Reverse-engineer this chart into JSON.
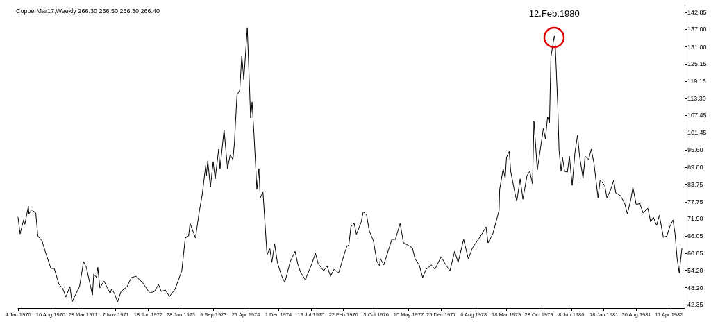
{
  "chart_data": {
    "type": "line",
    "title": "CopperMar17,Weekly 266.30 266.50 266.30 266.40",
    "grid": false,
    "xlim": [
      "1970-01-04",
      "1982-07-28"
    ],
    "xticks": [
      {
        "value": "1970-01-04",
        "label": "4 Jan 1970"
      },
      {
        "value": "1970-08-16",
        "label": "16 Aug 1970"
      },
      {
        "value": "1971-03-28",
        "label": "28 Mar 1971"
      },
      {
        "value": "1971-11-07",
        "label": "7 Nov 1971"
      },
      {
        "value": "1972-06-18",
        "label": "18 Jun 1972"
      },
      {
        "value": "1973-01-28",
        "label": "28 Jan 1973"
      },
      {
        "value": "1973-09-09",
        "label": "9 Sep 1973"
      },
      {
        "value": "1974-04-21",
        "label": "21 Apr 1974"
      },
      {
        "value": "1974-12-01",
        "label": "1 Dec 1974"
      },
      {
        "value": "1975-07-13",
        "label": "13 Jul 1975"
      },
      {
        "value": "1976-02-22",
        "label": "22 Feb 1976"
      },
      {
        "value": "1976-10-03",
        "label": "3 Oct 1976"
      },
      {
        "value": "1977-05-15",
        "label": "15 May 1977"
      },
      {
        "value": "1977-12-25",
        "label": "25 Dec 1977"
      },
      {
        "value": "1978-08-06",
        "label": "6 Aug 1978"
      },
      {
        "value": "1979-03-18",
        "label": "18 Mar 1979"
      },
      {
        "value": "1979-10-28",
        "label": "28 Oct 1979"
      },
      {
        "value": "1980-06-08",
        "label": "8 Jun 1980"
      },
      {
        "value": "1981-01-18",
        "label": "18 Jan 1981"
      },
      {
        "value": "1981-08-30",
        "label": "30 Aug 1981"
      },
      {
        "value": "1982-04-11",
        "label": "11 Apr 1982"
      }
    ],
    "ylim": [
      41.2,
      145.2
    ],
    "yticks": [
      142.85,
      {
        "value": 137,
        "label": "137.00"
      },
      {
        "value": 131,
        "label": "131.00"
      },
      125.15,
      119.15,
      {
        "value": 113.3,
        "label": "113.30"
      },
      107.45,
      101.45,
      {
        "value": 95.6,
        "label": "95.60"
      },
      {
        "value": 89.6,
        "label": "89.60"
      },
      83.75,
      77.75,
      {
        "value": 71.9,
        "label": "71.90"
      },
      66.05,
      60.05,
      {
        "value": 54.2,
        "label": "54.20"
      },
      {
        "value": 48.2,
        "label": "48.20"
      },
      42.35
    ],
    "annotations": [
      {
        "text": "12.Feb.1980",
        "x": "1980-02-12",
        "y": 134.7
      }
    ],
    "series": [
      {
        "color": "#000000",
        "x": [
          "1970-01-04",
          "1970-01-18",
          "1970-02-11",
          "1970-02-20",
          "1970-03-16",
          "1970-03-20",
          "1970-04-08",
          "1970-05-06",
          "1970-05-20",
          "1970-06-18",
          "1970-07-11",
          "1970-08-18",
          "1970-09-10",
          "1970-10-13",
          "1970-11-06",
          "1970-11-29",
          "1970-12-27",
          "1971-01-10",
          "1971-01-29",
          "1971-03-03",
          "1971-03-31",
          "1971-04-19",
          "1971-05-31",
          "1971-06-09",
          "1971-06-28",
          "1971-07-07",
          "1971-07-21",
          "1971-08-19",
          "1971-09-06",
          "1971-09-30",
          "1971-10-09",
          "1971-10-28",
          "1971-11-20",
          "1971-12-14",
          "1972-01-25",
          "1972-02-23",
          "1972-03-27",
          "1972-05-12",
          "1972-06-28",
          "1972-07-31",
          "1972-08-28",
          "1972-09-16",
          "1972-10-14",
          "1972-11-11",
          "1972-12-19",
          "1973-02-04",
          "1973-02-28",
          "1973-03-23",
          "1973-04-02",
          "1973-05-09",
          "1973-06-06",
          "1973-06-25",
          "1973-07-19",
          "1973-07-23",
          "1973-08-02",
          "1973-08-20",
          "1973-09-08",
          "1973-09-22",
          "1973-10-16",
          "1973-10-25",
          "1973-11-22",
          "1973-12-16",
          "1974-01-03",
          "1974-01-22",
          "1974-02-01",
          "1974-02-19",
          "1974-03-10",
          "1974-03-24",
          "1974-04-07",
          "1974-05-01",
          "1974-05-24",
          "1974-06-03",
          "1974-06-17",
          "1974-07-06",
          "1974-07-20",
          "1974-07-29",
          "1974-08-17",
          "1974-09-14",
          "1974-10-03",
          "1974-10-17",
          "1974-11-05",
          "1974-11-24",
          "1974-12-22",
          "1975-01-14",
          "1975-02-21",
          "1975-03-26",
          "1975-04-13",
          "1975-05-02",
          "1975-06-04",
          "1975-07-16",
          "1975-08-13",
          "1975-09-01",
          "1975-10-09",
          "1975-11-01",
          "1975-11-25",
          "1975-12-18",
          "1976-01-20",
          "1976-02-26",
          "1976-03-16",
          "1976-03-30",
          "1976-04-13",
          "1976-05-06",
          "1976-05-21",
          "1976-06-23",
          "1976-07-07",
          "1976-07-30",
          "1976-08-18",
          "1976-09-15",
          "1976-10-09",
          "1976-10-28",
          "1976-11-01",
          "1976-11-25",
          "1976-12-28",
          "1977-01-20",
          "1977-02-13",
          "1977-03-18",
          "1977-04-10",
          "1977-05-08",
          "1977-06-10",
          "1977-06-29",
          "1977-07-27",
          "1977-08-20",
          "1977-09-12",
          "1977-10-20",
          "1977-11-12",
          "1977-12-25",
          "1978-01-22",
          "1978-02-24",
          "1978-03-28",
          "1978-04-21",
          "1978-05-29",
          "1978-06-30",
          "1978-07-29",
          "1978-08-31",
          "1978-10-02",
          "1978-10-30",
          "1978-11-13",
          "1978-12-16",
          "1979-01-28",
          "1979-02-01",
          "1979-02-25",
          "1979-03-11",
          "1979-03-20",
          "1979-04-08",
          "1979-04-18",
          "1979-05-16",
          "1979-05-30",
          "1979-06-22",
          "1979-07-11",
          "1979-08-08",
          "1979-08-27",
          "1979-09-15",
          "1979-09-25",
          "1979-10-18",
          "1979-11-29",
          "1979-12-13",
          "1979-12-28",
          "1980-01-10",
          "1980-01-20",
          "1980-02-12",
          "1980-02-17",
          "1980-03-07",
          "1980-03-16",
          "1980-03-30",
          "1980-04-08",
          "1980-04-23",
          "1980-05-12",
          "1980-05-26",
          "1980-06-14",
          "1980-07-03",
          "1980-07-21",
          "1980-08-04",
          "1980-08-28",
          "1980-09-11",
          "1980-10-05",
          "1980-10-23",
          "1980-11-11",
          "1980-12-09",
          "1980-12-23",
          "1981-01-24",
          "1981-02-08",
          "1981-03-03",
          "1981-03-27",
          "1981-04-10",
          "1981-05-13",
          "1981-06-10",
          "1981-06-29",
          "1981-07-23",
          "1981-08-06",
          "1981-08-29",
          "1981-09-22",
          "1981-10-15",
          "1981-11-17",
          "1981-12-06",
          "1981-12-25",
          "1982-01-16",
          "1982-02-04",
          "1982-03-04",
          "1982-03-28",
          "1982-04-16",
          "1982-05-09",
          "1982-05-23",
          "1982-06-06",
          "1982-06-21",
          "1982-07-09"
        ],
        "values": [
          72.4,
          66.7,
          71.5,
          70.0,
          76.2,
          73.6,
          75.0,
          73.9,
          66.0,
          64.3,
          60.5,
          54.8,
          54.8,
          49.3,
          48.1,
          45.0,
          48.6,
          43.3,
          45.2,
          48.6,
          57.2,
          55.2,
          45.7,
          52.9,
          51.7,
          55.2,
          48.1,
          50.5,
          48.6,
          46.2,
          47.6,
          46.4,
          43.3,
          46.9,
          48.6,
          51.7,
          52.1,
          49.8,
          46.4,
          46.9,
          49.3,
          46.9,
          47.4,
          45.2,
          47.6,
          54.0,
          65.3,
          66.0,
          70.3,
          65.3,
          74.8,
          80.3,
          90.3,
          86.7,
          91.8,
          82.7,
          91.5,
          85.6,
          95.8,
          89.1,
          102.5,
          89.1,
          93.9,
          92.2,
          97.7,
          114.4,
          116.1,
          128.0,
          119.7,
          137.6,
          106.6,
          112.0,
          100.1,
          82.0,
          89.1,
          79.1,
          81.0,
          59.5,
          61.7,
          56.9,
          63.2,
          56.9,
          52.4,
          50.0,
          57.2,
          60.7,
          56.4,
          53.6,
          50.9,
          56.0,
          60.0,
          56.4,
          54.0,
          55.7,
          52.1,
          54.5,
          53.3,
          59.5,
          62.4,
          62.9,
          69.1,
          70.3,
          66.5,
          70.8,
          74.3,
          73.1,
          67.7,
          64.3,
          57.2,
          55.7,
          58.3,
          56.0,
          61.2,
          64.8,
          64.8,
          70.3,
          63.6,
          62.9,
          61.9,
          58.1,
          56.0,
          51.7,
          54.5,
          56.0,
          54.5,
          58.8,
          56.4,
          54.0,
          60.7,
          56.9,
          64.8,
          58.1,
          61.9,
          64.3,
          66.7,
          69.1,
          63.6,
          66.7,
          74.8,
          82.0,
          89.1,
          85.8,
          93.0,
          95.1,
          88.2,
          81.0,
          77.9,
          85.6,
          78.6,
          86.7,
          88.2,
          83.9,
          105.4,
          88.7,
          103.0,
          99.4,
          107.0,
          104.9,
          127.6,
          134.7,
          133.5,
          110.6,
          95.3,
          88.2,
          93.0,
          88.2,
          87.9,
          93.4,
          83.4,
          94.6,
          100.6,
          93.4,
          85.8,
          93.4,
          92.2,
          95.8,
          91.0,
          79.1,
          85.1,
          83.4,
          79.1,
          81.5,
          85.1,
          80.8,
          79.8,
          77.2,
          73.6,
          78.6,
          82.7,
          76.7,
          77.2,
          73.9,
          75.5,
          70.8,
          72.4,
          69.6,
          73.1,
          65.5,
          66.0,
          69.1,
          71.5,
          66.7,
          58.3,
          53.3,
          61.7
        ]
      }
    ]
  }
}
